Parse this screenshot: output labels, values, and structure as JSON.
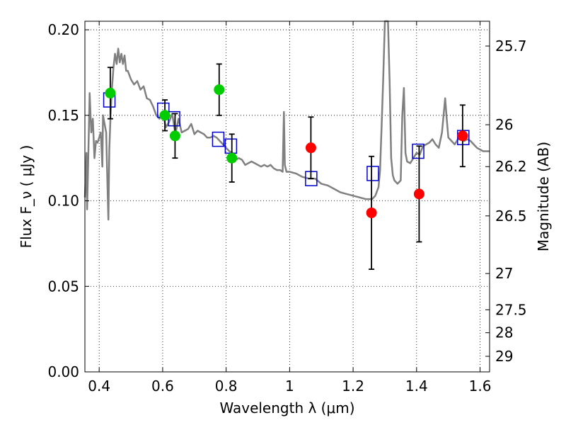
{
  "chart_data": {
    "type": "scatter",
    "xlabel": "Wavelength  λ (μm)",
    "ylabel": "Flux  F_ν  ( μJy )",
    "ylabel_right": "Magnitude (AB)",
    "xlim": [
      0.355,
      1.63
    ],
    "ylim": [
      0.0,
      0.205
    ],
    "grid": true,
    "x_ticks": [
      0.4,
      0.6,
      0.8,
      1.0,
      1.2,
      1.4,
      1.6
    ],
    "x_tick_labels": [
      "0.4",
      "0.6",
      "0.8",
      "1",
      "1.2",
      "1.4",
      "1.6"
    ],
    "y_ticks": [
      0.0,
      0.05,
      0.1,
      0.15,
      0.2
    ],
    "y_tick_labels": [
      "0.00",
      "0.05",
      "0.10",
      "0.15",
      "0.20"
    ],
    "right_ticks": [
      {
        "label": "25.7",
        "flux": 0.1905
      },
      {
        "label": "26",
        "flux": 0.1445
      },
      {
        "label": "26.2",
        "flux": 0.12
      },
      {
        "label": "26.5",
        "flux": 0.0912
      },
      {
        "label": "27",
        "flux": 0.0575
      },
      {
        "label": "27.5",
        "flux": 0.0363
      },
      {
        "label": "28",
        "flux": 0.0229
      },
      {
        "label": "29",
        "flux": 0.0091
      }
    ],
    "series": [
      {
        "kind": "spectrum",
        "color": "#808080",
        "points": [
          [
            0.355,
            0.102
          ],
          [
            0.36,
            0.128
          ],
          [
            0.362,
            0.095
          ],
          [
            0.365,
            0.12
          ],
          [
            0.37,
            0.163
          ],
          [
            0.375,
            0.14
          ],
          [
            0.38,
            0.148
          ],
          [
            0.385,
            0.125
          ],
          [
            0.39,
            0.135
          ],
          [
            0.395,
            0.134
          ],
          [
            0.4,
            0.137
          ],
          [
            0.405,
            0.14
          ],
          [
            0.41,
            0.12
          ],
          [
            0.412,
            0.15
          ],
          [
            0.417,
            0.145
          ],
          [
            0.422,
            0.14
          ],
          [
            0.426,
            0.109
          ],
          [
            0.429,
            0.089
          ],
          [
            0.432,
            0.13
          ],
          [
            0.436,
            0.15
          ],
          [
            0.44,
            0.165
          ],
          [
            0.445,
            0.178
          ],
          [
            0.45,
            0.186
          ],
          [
            0.455,
            0.18
          ],
          [
            0.46,
            0.189
          ],
          [
            0.465,
            0.181
          ],
          [
            0.47,
            0.186
          ],
          [
            0.475,
            0.18
          ],
          [
            0.48,
            0.185
          ],
          [
            0.485,
            0.176
          ],
          [
            0.49,
            0.176
          ],
          [
            0.5,
            0.171
          ],
          [
            0.51,
            0.168
          ],
          [
            0.52,
            0.17
          ],
          [
            0.53,
            0.165
          ],
          [
            0.54,
            0.167
          ],
          [
            0.55,
            0.16
          ],
          [
            0.56,
            0.159
          ],
          [
            0.57,
            0.155
          ],
          [
            0.58,
            0.15
          ],
          [
            0.59,
            0.148
          ],
          [
            0.6,
            0.152
          ],
          [
            0.61,
            0.143
          ],
          [
            0.62,
            0.146
          ],
          [
            0.63,
            0.151
          ],
          [
            0.64,
            0.139
          ],
          [
            0.65,
            0.148
          ],
          [
            0.66,
            0.14
          ],
          [
            0.67,
            0.141
          ],
          [
            0.68,
            0.142
          ],
          [
            0.69,
            0.145
          ],
          [
            0.7,
            0.139
          ],
          [
            0.71,
            0.141
          ],
          [
            0.72,
            0.14
          ],
          [
            0.73,
            0.139
          ],
          [
            0.74,
            0.137
          ],
          [
            0.75,
            0.137
          ],
          [
            0.76,
            0.138
          ],
          [
            0.77,
            0.137
          ],
          [
            0.78,
            0.135
          ],
          [
            0.79,
            0.133
          ],
          [
            0.8,
            0.131
          ],
          [
            0.81,
            0.129
          ],
          [
            0.82,
            0.128
          ],
          [
            0.83,
            0.124
          ],
          [
            0.84,
            0.125
          ],
          [
            0.85,
            0.124
          ],
          [
            0.86,
            0.121
          ],
          [
            0.87,
            0.122
          ],
          [
            0.88,
            0.123
          ],
          [
            0.89,
            0.122
          ],
          [
            0.9,
            0.121
          ],
          [
            0.91,
            0.12
          ],
          [
            0.92,
            0.121
          ],
          [
            0.93,
            0.12
          ],
          [
            0.94,
            0.121
          ],
          [
            0.95,
            0.119
          ],
          [
            0.96,
            0.118
          ],
          [
            0.97,
            0.118
          ],
          [
            0.978,
            0.117
          ],
          [
            0.982,
            0.152
          ],
          [
            0.985,
            0.121
          ],
          [
            0.99,
            0.117
          ],
          [
            1.0,
            0.117
          ],
          [
            1.02,
            0.116
          ],
          [
            1.04,
            0.114
          ],
          [
            1.06,
            0.113
          ],
          [
            1.08,
            0.113
          ],
          [
            1.1,
            0.11
          ],
          [
            1.12,
            0.109
          ],
          [
            1.14,
            0.107
          ],
          [
            1.16,
            0.105
          ],
          [
            1.18,
            0.104
          ],
          [
            1.2,
            0.103
          ],
          [
            1.22,
            0.102
          ],
          [
            1.24,
            0.101
          ],
          [
            1.26,
            0.101
          ],
          [
            1.27,
            0.103
          ],
          [
            1.28,
            0.108
          ],
          [
            1.285,
            0.118
          ],
          [
            1.29,
            0.145
          ],
          [
            1.295,
            0.172
          ],
          [
            1.3,
            0.205
          ],
          [
            1.305,
            0.205
          ],
          [
            1.31,
            0.205
          ],
          [
            1.315,
            0.17
          ],
          [
            1.32,
            0.125
          ],
          [
            1.325,
            0.115
          ],
          [
            1.33,
            0.112
          ],
          [
            1.34,
            0.11
          ],
          [
            1.35,
            0.112
          ],
          [
            1.355,
            0.15
          ],
          [
            1.36,
            0.166
          ],
          [
            1.365,
            0.128
          ],
          [
            1.37,
            0.123
          ],
          [
            1.38,
            0.122
          ],
          [
            1.39,
            0.125
          ],
          [
            1.4,
            0.128
          ],
          [
            1.41,
            0.127
          ],
          [
            1.42,
            0.132
          ],
          [
            1.43,
            0.133
          ],
          [
            1.44,
            0.134
          ],
          [
            1.45,
            0.136
          ],
          [
            1.46,
            0.133
          ],
          [
            1.47,
            0.131
          ],
          [
            1.48,
            0.14
          ],
          [
            1.49,
            0.16
          ],
          [
            1.495,
            0.148
          ],
          [
            1.5,
            0.137
          ],
          [
            1.51,
            0.135
          ],
          [
            1.52,
            0.133
          ],
          [
            1.53,
            0.136
          ],
          [
            1.54,
            0.136
          ],
          [
            1.55,
            0.135
          ],
          [
            1.56,
            0.136
          ],
          [
            1.57,
            0.135
          ],
          [
            1.58,
            0.133
          ],
          [
            1.59,
            0.131
          ],
          [
            1.6,
            0.13
          ],
          [
            1.61,
            0.129
          ],
          [
            1.63,
            0.129
          ]
        ]
      },
      {
        "kind": "model_boxes",
        "color": "#0000cc",
        "x": [
          0.432,
          0.602,
          0.636,
          0.775,
          0.815,
          1.068,
          1.262,
          1.405,
          1.547
        ],
        "y": [
          0.159,
          0.153,
          0.148,
          0.136,
          0.132,
          0.113,
          0.116,
          0.129,
          0.137
        ]
      },
      {
        "kind": "observed",
        "color": "#00cc00",
        "x": [
          0.435,
          0.607,
          0.639,
          0.778,
          0.818
        ],
        "y": [
          0.163,
          0.15,
          0.138,
          0.165,
          0.125
        ],
        "err": [
          0.015,
          0.009,
          0.013,
          0.015,
          0.014
        ]
      },
      {
        "kind": "observed",
        "color": "#ff0000",
        "x": [
          1.067,
          1.258,
          1.408,
          1.545
        ],
        "y": [
          0.131,
          0.093,
          0.104,
          0.138
        ],
        "err": [
          0.018,
          0.033,
          0.028,
          0.018
        ]
      }
    ]
  }
}
